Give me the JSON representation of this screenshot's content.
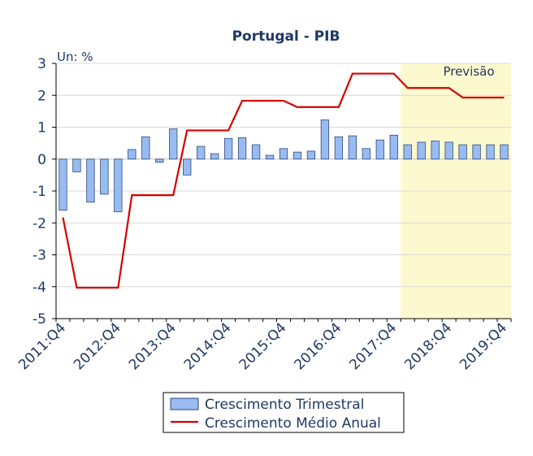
{
  "chart_data": {
    "type": "bar",
    "title": "Portugal - PIB",
    "unit_label": "Un: %",
    "forecast_label": "Previsão",
    "forecast_start": "2018:Q1",
    "forecast_end": "2019:Q4",
    "ylim": [
      -5,
      3
    ],
    "yticks": [
      3,
      2,
      1,
      0,
      -1,
      -2,
      -3,
      -4,
      -5
    ],
    "x_tick_labels": [
      "2011:Q4",
      "2012:Q4",
      "2013:Q4",
      "2014:Q4",
      "2015:Q4",
      "2016:Q4",
      "2017:Q4",
      "2018:Q4",
      "2019:Q4"
    ],
    "grid": true,
    "legend_position": "bottom",
    "colors": {
      "bar_fill": "#99bbf2",
      "bar_stroke": "#2d4a7a",
      "line": "#d40000",
      "forecast_band": "#fdf9cf",
      "text": "#1f3864"
    },
    "categories": [
      "2011:Q4",
      "2012:Q1",
      "2012:Q2",
      "2012:Q3",
      "2012:Q4",
      "2013:Q1",
      "2013:Q2",
      "2013:Q3",
      "2013:Q4",
      "2014:Q1",
      "2014:Q2",
      "2014:Q3",
      "2014:Q4",
      "2015:Q1",
      "2015:Q2",
      "2015:Q3",
      "2015:Q4",
      "2016:Q1",
      "2016:Q2",
      "2016:Q3",
      "2016:Q4",
      "2017:Q1",
      "2017:Q2",
      "2017:Q3",
      "2017:Q4",
      "2018:Q1",
      "2018:Q2",
      "2018:Q3",
      "2018:Q4",
      "2019:Q1",
      "2019:Q2",
      "2019:Q3",
      "2019:Q4"
    ],
    "series": [
      {
        "name": "Crescimento Trimestral",
        "kind": "bar",
        "values": [
          -1.6,
          -0.4,
          -1.35,
          -1.1,
          -1.65,
          0.3,
          0.7,
          -0.1,
          0.95,
          -0.5,
          0.4,
          0.17,
          0.65,
          0.67,
          0.45,
          0.12,
          0.33,
          0.22,
          0.25,
          1.23,
          0.7,
          0.73,
          0.33,
          0.6,
          0.75,
          0.45,
          0.53,
          0.57,
          0.53,
          0.45,
          0.45,
          0.45,
          0.45
        ]
      },
      {
        "name": "Crescimento Médio Anual",
        "kind": "line",
        "values": [
          -1.83,
          -4.03,
          -4.03,
          -4.03,
          -4.03,
          -1.13,
          -1.13,
          -1.13,
          -1.13,
          0.9,
          0.9,
          0.9,
          0.9,
          1.83,
          1.83,
          1.83,
          1.83,
          1.63,
          1.63,
          1.63,
          1.63,
          2.68,
          2.68,
          2.68,
          2.68,
          2.23,
          2.23,
          2.23,
          2.23,
          1.93,
          1.93,
          1.93,
          1.93
        ]
      }
    ]
  }
}
